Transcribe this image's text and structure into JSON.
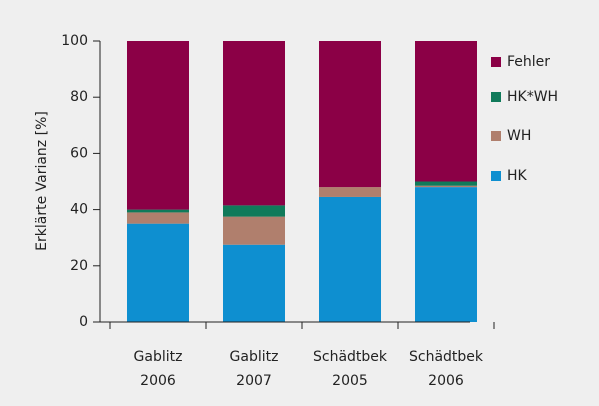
{
  "chart_data": {
    "type": "stacked_bar",
    "y_label": "Erklärte Varianz [%]",
    "categories": [
      "Gablitz 2006",
      "Gablitz 2007",
      "Schädtbek 2005",
      "Schädtbek 2006"
    ],
    "series": [
      {
        "name": "HK",
        "color": "#0e8fd0",
        "values": [
          35,
          27.5,
          44.5,
          48
        ]
      },
      {
        "name": "WH",
        "color": "#b07f6d",
        "values": [
          4,
          10,
          3.5,
          0.5
        ]
      },
      {
        "name": "HK*WH",
        "color": "#107a5a",
        "values": [
          1,
          4,
          0,
          1.5
        ]
      },
      {
        "name": "Fehler",
        "color": "#8b0046",
        "values": [
          60,
          58.5,
          52,
          50
        ]
      }
    ],
    "ylim": [
      0,
      100
    ],
    "yticks": [
      0,
      20,
      40,
      60,
      80,
      100
    ]
  }
}
